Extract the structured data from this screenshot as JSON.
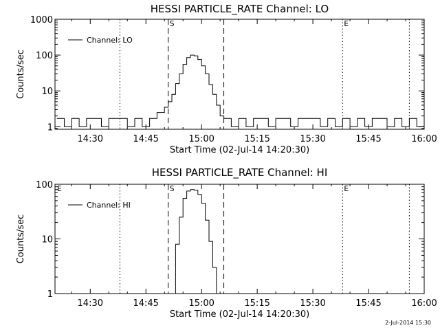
{
  "chart_data": [
    {
      "type": "line",
      "title": "HESSI PARTICLE_RATE Channel: LO",
      "xlabel": "Start Time (02-Jul-14 14:20:30)",
      "ylabel": "Counts/sec",
      "yscale": "log",
      "xlim": [
        "14:20:30",
        "16:00"
      ],
      "ylim": [
        0.85,
        1000
      ],
      "xticks": [
        "14:30",
        "14:45",
        "15:00",
        "15:15",
        "15:30",
        "15:45",
        "16:00"
      ],
      "yticks": [
        "1",
        "10",
        "100",
        "1000"
      ],
      "legend": {
        "label": "Channel: LO",
        "position": "top-left"
      },
      "markers": [
        {
          "label": "",
          "time": "14:38",
          "style": "dotted"
        },
        {
          "label": "S",
          "time": "14:51",
          "style": "dashed"
        },
        {
          "label": "",
          "time": "15:06",
          "style": "dashed"
        },
        {
          "label": "E",
          "time": "15:38",
          "style": "dotted"
        },
        {
          "label": "",
          "time": "15:56",
          "style": "dotted"
        }
      ],
      "series": [
        {
          "name": "Channel: LO",
          "x": [
            "14:21",
            "14:23",
            "14:25",
            "14:27",
            "14:29",
            "14:31",
            "14:33",
            "14:35",
            "14:37",
            "14:38",
            "14:40",
            "14:42",
            "14:44",
            "14:46",
            "14:48",
            "14:49",
            "14:50",
            "14:51",
            "14:52",
            "14:53",
            "14:54",
            "14:55",
            "14:56",
            "14:57",
            "14:58",
            "14:59",
            "15:00",
            "15:01",
            "15:02",
            "15:03",
            "15:04",
            "15:05",
            "15:06",
            "15:08",
            "15:10",
            "15:12",
            "15:14",
            "15:16",
            "15:18",
            "15:20",
            "15:22",
            "15:24",
            "15:26",
            "15:28",
            "15:30",
            "15:32",
            "15:34",
            "15:36",
            "15:38",
            "15:40",
            "15:42",
            "15:44",
            "15:46",
            "15:48",
            "15:50",
            "15:52",
            "15:54",
            "15:56",
            "15:58",
            "16:00"
          ],
          "y": [
            1.7,
            1.0,
            1.7,
            1.0,
            1.7,
            1.7,
            1.0,
            1.7,
            1.7,
            1.7,
            1.0,
            1.7,
            1.0,
            1.7,
            2.5,
            2.5,
            3.5,
            5.0,
            8.0,
            16,
            30,
            55,
            85,
            100,
            95,
            75,
            50,
            30,
            15,
            8,
            4,
            2.0,
            1.7,
            1.0,
            1.7,
            1.0,
            1.7,
            1.7,
            1.0,
            1.7,
            1.7,
            1.0,
            1.7,
            1.7,
            1.7,
            1.0,
            1.7,
            1.0,
            1.7,
            1.0,
            1.7,
            1.0,
            1.7,
            1.7,
            1.0,
            1.7,
            1.0,
            1.7,
            1.0,
            1.0
          ]
        }
      ]
    },
    {
      "type": "line",
      "title": "HESSI PARTICLE_RATE Channel: HI",
      "xlabel": "Start Time (02-Jul-14 14:20:30)",
      "ylabel": "Counts/sec",
      "yscale": "log",
      "xlim": [
        "14:20:30",
        "16:00"
      ],
      "ylim": [
        1,
        100
      ],
      "xticks": [
        "14:30",
        "14:45",
        "15:00",
        "15:15",
        "15:30",
        "15:45",
        "16:00"
      ],
      "yticks": [
        "1",
        "10",
        "100"
      ],
      "legend": {
        "label": "Channel: HI",
        "position": "top-left"
      },
      "corner_labels": [
        "E"
      ],
      "markers": [
        {
          "label": "",
          "time": "14:38",
          "style": "dotted"
        },
        {
          "label": "S",
          "time": "14:51",
          "style": "dashed"
        },
        {
          "label": "",
          "time": "15:06",
          "style": "dashed"
        },
        {
          "label": "E",
          "time": "15:38",
          "style": "dotted"
        },
        {
          "label": "",
          "time": "15:56",
          "style": "dotted"
        }
      ],
      "series": [
        {
          "name": "Channel: HI",
          "x": [
            "14:52",
            "14:53",
            "14:54",
            "14:55",
            "14:56",
            "14:57",
            "14:58",
            "14:59",
            "15:00",
            "15:01",
            "15:02",
            "15:03",
            "15:04"
          ],
          "y": [
            1.0,
            8,
            25,
            55,
            75,
            80,
            78,
            65,
            45,
            22,
            9,
            3,
            1.0
          ]
        }
      ]
    }
  ],
  "footer_text": "2-Jul-2014 15:30"
}
